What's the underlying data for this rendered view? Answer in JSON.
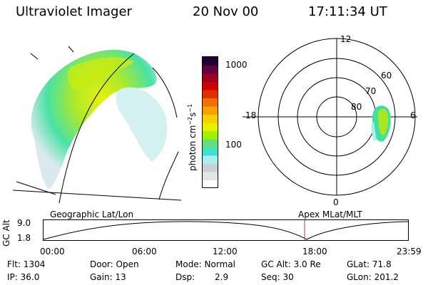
{
  "header": {
    "instrument": "Ultraviolet Imager",
    "date": "20 Nov 00",
    "time": "17:11:34 UT"
  },
  "colorbar": {
    "unit_label": "photon cm",
    "unit_exp1": "−2",
    "unit_mid": "s",
    "unit_exp2": "−1",
    "tick_high": "1000",
    "tick_low": "100",
    "colors": [
      "#ffffff",
      "#e0e6e8",
      "#c8d0d4",
      "#a8f0f0",
      "#40e0d0",
      "#60e080",
      "#a0f000",
      "#e8f000",
      "#f8d000",
      "#f8a000",
      "#f07000",
      "#e03000",
      "#d00000",
      "#a00020",
      "#600040",
      "#200030"
    ]
  },
  "polar": {
    "labels": {
      "mlt_top": "12",
      "mlt_left": "18",
      "mlt_right": "6",
      "mlt_bottom": "0"
    },
    "lat_labels": [
      "60",
      "70",
      "80"
    ]
  },
  "timeline": {
    "left_label": "Geographic Lat/Lon",
    "right_label": "Apex MLat/MLT",
    "axis_title": "GC Alt",
    "y_ticks": [
      "9.0",
      "1.8"
    ],
    "x_ticks": [
      "00:00",
      "06:00",
      "12:00",
      "18:00",
      "23:59"
    ],
    "marker_time": "17:11:34",
    "marker_color": "#d03030"
  },
  "info": {
    "flt": "Flt: 1304",
    "ip": "IP: 36.0",
    "door": "Door: Open",
    "gain": "Gain: 13",
    "mode": "Mode: Normal",
    "dsp_label": "Dsp:",
    "dsp_value": "2.9",
    "gcalt": "GC Alt: 3.0 Re",
    "seq": "Seq: 30",
    "glat": "GLat: 71.8",
    "glon": "GLon: 201.2"
  }
}
